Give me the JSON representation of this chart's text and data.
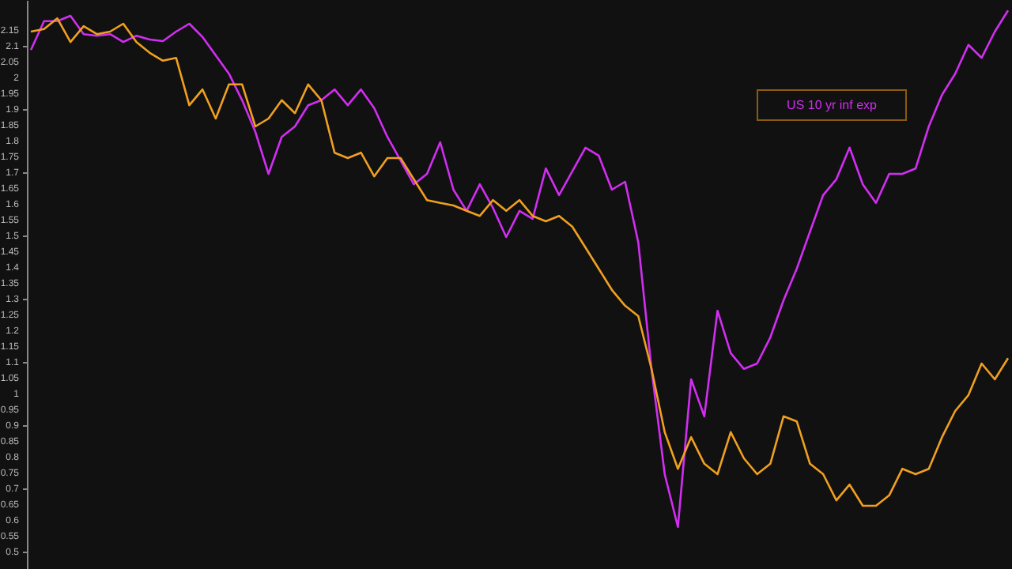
{
  "chart_data": {
    "type": "line",
    "categories": [
      null,
      null,
      null,
      null,
      null,
      null,
      null,
      null,
      null,
      null,
      null,
      null,
      null,
      null,
      null,
      null,
      null,
      null,
      null,
      null,
      null,
      null,
      null,
      null,
      null,
      null,
      null,
      null,
      null,
      null,
      null,
      null,
      null,
      null,
      null,
      null,
      null,
      null,
      null,
      null,
      null,
      null,
      null,
      null,
      null,
      null,
      null,
      null,
      null,
      null,
      null,
      null,
      null,
      null,
      null,
      null,
      null,
      null,
      null,
      null,
      null,
      null,
      null,
      null,
      null,
      null,
      null,
      null,
      null,
      null,
      null,
      null,
      null,
      null,
      null
    ],
    "ylim": [
      0.445,
      2.245
    ],
    "yticks": [
      0.5,
      0.55,
      0.6,
      0.65,
      0.7,
      0.75,
      0.8,
      0.85,
      0.9,
      0.95,
      1,
      1.05,
      1.1,
      1.15,
      1.2,
      1.25,
      1.3,
      1.35,
      1.4,
      1.45,
      1.5,
      1.55,
      1.6,
      1.65,
      1.7,
      1.75,
      1.8,
      1.85,
      1.9,
      1.95,
      2,
      2.05,
      2.1,
      2.15
    ],
    "tick_labels": "y",
    "grid": false,
    "marker": "none",
    "line_style": "solid",
    "series": [
      {
        "name": "US 10 yr inf exp",
        "color": "#d22ef2",
        "values": [
          2.087,
          2.178,
          2.178,
          2.195,
          2.137,
          2.132,
          2.137,
          2.112,
          2.132,
          2.12,
          2.115,
          2.145,
          2.17,
          2.128,
          2.07,
          2.012,
          1.928,
          1.828,
          1.695,
          1.812,
          1.845,
          1.912,
          1.928,
          1.962,
          1.912,
          1.962,
          1.903,
          1.812,
          1.737,
          1.662,
          1.695,
          1.795,
          1.645,
          1.578,
          1.662,
          1.587,
          1.495,
          1.578,
          1.553,
          1.712,
          1.628,
          1.703,
          1.778,
          1.753,
          1.645,
          1.67,
          1.478,
          1.078,
          0.745,
          0.578,
          1.045,
          0.928,
          1.262,
          1.128,
          1.078,
          1.095,
          1.178,
          1.295,
          1.395,
          1.512,
          1.628,
          1.678,
          1.778,
          1.662,
          1.603,
          1.695,
          1.695,
          1.712,
          1.845,
          1.945,
          2.012,
          2.103,
          2.062,
          2.145,
          2.212
        ]
      },
      {
        "color": "#f0a020",
        "values": [
          2.145,
          2.153,
          2.187,
          2.112,
          2.162,
          2.137,
          2.145,
          2.17,
          2.112,
          2.078,
          2.053,
          2.062,
          1.912,
          1.962,
          1.87,
          1.978,
          1.978,
          1.845,
          1.87,
          1.928,
          1.887,
          1.978,
          1.928,
          1.762,
          1.745,
          1.762,
          1.687,
          1.745,
          1.745,
          1.678,
          1.612,
          1.603,
          1.595,
          1.578,
          1.562,
          1.612,
          1.578,
          1.612,
          1.562,
          1.545,
          1.562,
          1.528,
          1.462,
          1.395,
          1.328,
          1.278,
          1.245,
          1.078,
          0.878,
          0.762,
          0.862,
          0.778,
          0.745,
          0.878,
          0.795,
          0.745,
          0.778,
          0.928,
          0.912,
          0.778,
          0.745,
          0.662,
          0.712,
          0.645,
          0.645,
          0.678,
          0.762,
          0.745,
          0.762,
          0.862,
          0.945,
          0.995,
          1.095,
          1.045,
          1.112
        ]
      }
    ]
  }
}
